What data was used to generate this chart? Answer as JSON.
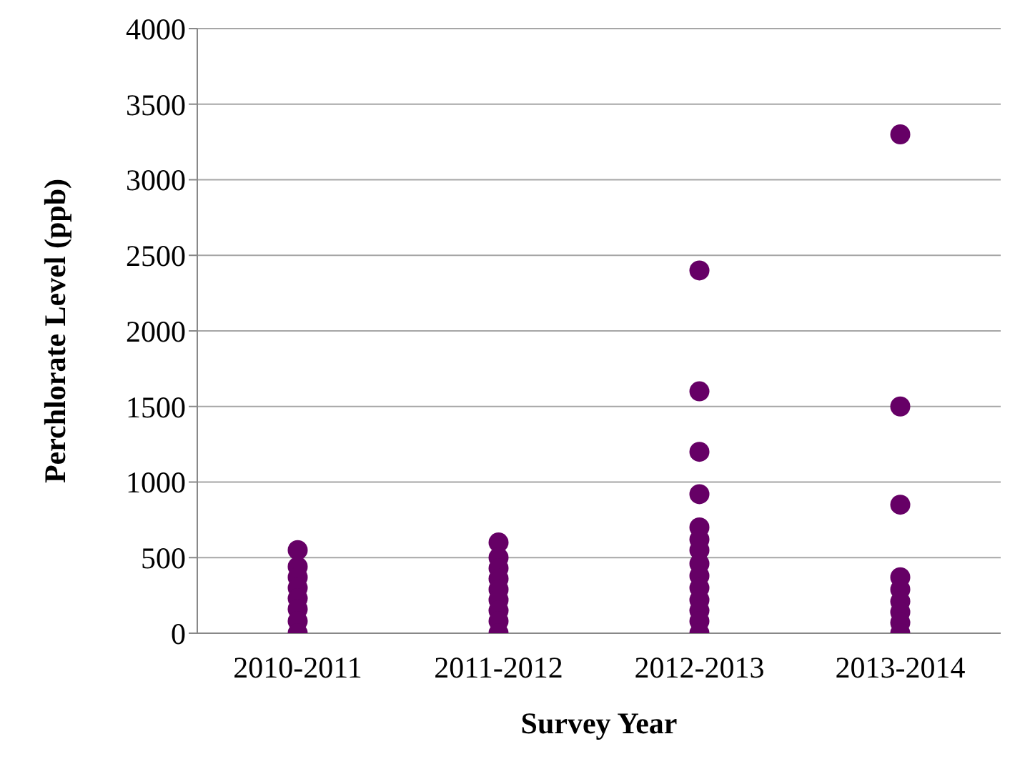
{
  "chart_data": {
    "type": "scatter",
    "xlabel": "Survey Year",
    "ylabel": "Perchlorate Level (ppb)",
    "categories": [
      "2010-2011",
      "2011-2012",
      "2012-2013",
      "2013-2014"
    ],
    "series": [
      {
        "color": "#660066",
        "x": [
          "2010-2011",
          "2010-2011",
          "2010-2011",
          "2010-2011",
          "2010-2011",
          "2010-2011",
          "2010-2011",
          "2010-2011",
          "2011-2012",
          "2011-2012",
          "2011-2012",
          "2011-2012",
          "2011-2012",
          "2011-2012",
          "2011-2012",
          "2011-2012",
          "2011-2012",
          "2012-2013",
          "2012-2013",
          "2012-2013",
          "2012-2013",
          "2012-2013",
          "2012-2013",
          "2012-2013",
          "2012-2013",
          "2012-2013",
          "2012-2013",
          "2012-2013",
          "2012-2013",
          "2012-2013",
          "2012-2013",
          "2013-2014",
          "2013-2014",
          "2013-2014",
          "2013-2014",
          "2013-2014",
          "2013-2014",
          "2013-2014",
          "2013-2014",
          "2013-2014"
        ],
        "values": [
          550,
          440,
          370,
          300,
          230,
          160,
          80,
          0,
          600,
          500,
          430,
          360,
          290,
          220,
          150,
          80,
          0,
          2400,
          1600,
          1200,
          920,
          700,
          620,
          550,
          460,
          380,
          300,
          220,
          150,
          80,
          0,
          3300,
          1500,
          850,
          370,
          290,
          210,
          140,
          70,
          0
        ]
      }
    ],
    "ylim": [
      0,
      4000
    ],
    "yticks": [
      0,
      500,
      1000,
      1500,
      2000,
      2500,
      3000,
      3500,
      4000
    ],
    "grid": "y",
    "marker": "circle"
  }
}
